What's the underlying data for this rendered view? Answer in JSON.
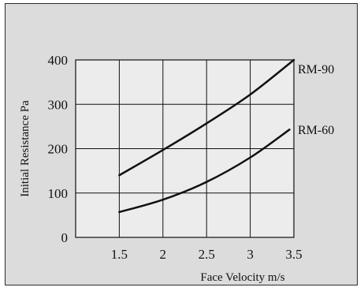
{
  "chart_data": {
    "type": "line",
    "title": "",
    "xlabel": "Face Velocity m/s",
    "ylabel": "Initial Resistance Pa",
    "xlim": [
      1,
      3.5
    ],
    "ylim": [
      0,
      400
    ],
    "x_ticks": [
      "1.5",
      "2",
      "2.5",
      "3",
      "3.5"
    ],
    "y_ticks": [
      "0",
      "100",
      "200",
      "300",
      "400"
    ],
    "grid": true,
    "legend": "none",
    "series": [
      {
        "name": "RM-90",
        "x": [
          1.5,
          2.0,
          2.5,
          3.0,
          3.5
        ],
        "y": [
          140,
          197,
          257,
          322,
          400
        ]
      },
      {
        "name": "RM-60",
        "x": [
          1.5,
          2.0,
          2.5,
          3.0,
          3.45
        ],
        "y": [
          57,
          85,
          125,
          180,
          243
        ]
      }
    ],
    "colors": {
      "plot_bg": "#ececec",
      "panel_bg": "#dcdcdc",
      "line": "#111111",
      "grid": "#111111"
    }
  }
}
